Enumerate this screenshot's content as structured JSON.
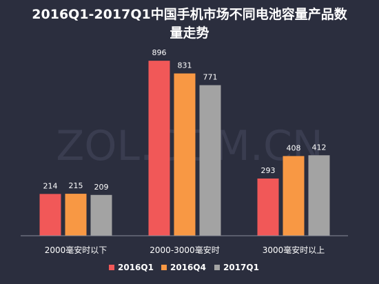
{
  "watermark": "ZOL.COM.CN",
  "chart_data": {
    "type": "bar",
    "title_line1": "2016Q1-2017Q1中国手机市场不同电池容量产品数",
    "title_line2": "量走势",
    "categories": [
      "2000毫安时以下",
      "2000-3000毫安时",
      "3000毫安时以上"
    ],
    "series": [
      {
        "name": "2016Q1",
        "values": [
          214,
          896,
          293
        ],
        "color": "#f15858"
      },
      {
        "name": "2016Q4",
        "values": [
          215,
          831,
          408
        ],
        "color": "#f89844"
      },
      {
        "name": "2017Q1",
        "values": [
          209,
          771,
          412
        ],
        "color": "#a3a3a3"
      }
    ],
    "ylim": [
      0,
      900
    ],
    "grid": false,
    "legend": "bottom"
  }
}
